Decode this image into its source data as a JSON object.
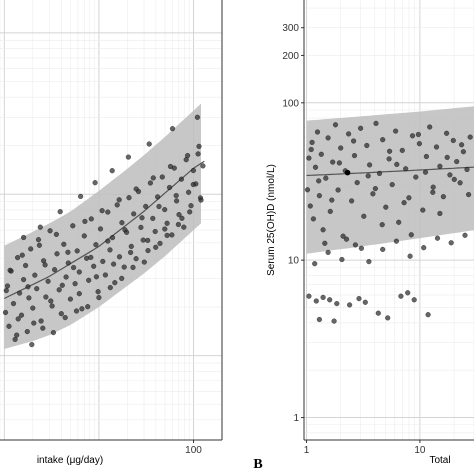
{
  "chart_data": [
    {
      "panel": "A",
      "type": "scatter",
      "xlabel": "intake (μg/day)",
      "ylabel": "",
      "x_scale": "log",
      "y_scale": "log",
      "xlim": [
        0.9,
        200
      ],
      "ylim": [
        3,
        1600
      ],
      "x_ticks": [
        {
          "value": 100,
          "label": "100"
        }
      ],
      "y_ticks": [],
      "grid": true,
      "colors": {
        "point": "#2b2b2b",
        "band": "#bdbdbd",
        "line": "#555555",
        "panel_border": "#333333"
      },
      "trend_line": {
        "x": [
          1,
          3,
          10,
          30,
          100,
          130
        ],
        "y": [
          22.6,
          31,
          47.5,
          78.5,
          145,
          160
        ]
      },
      "prediction_band": {
        "x": [
          1,
          2,
          3,
          5,
          10,
          20,
          30,
          50,
          100,
          120
        ],
        "lower": [
          11,
          12.3,
          13.4,
          15.5,
          20,
          27.1,
          32.3,
          41.4,
          60,
          66
        ],
        "upper": [
          48,
          58.5,
          66,
          78.1,
          105,
          144,
          175,
          227,
          330,
          365
        ]
      },
      "points": {
        "x": [
          1.03,
          1.08,
          1.12,
          1.18,
          1.25,
          1.3,
          1.38,
          1.45,
          1.52,
          1.6,
          1.68,
          1.75,
          1.82,
          1.9,
          2.0,
          2.1,
          2.2,
          2.3,
          2.45,
          2.6,
          2.75,
          2.9,
          3.05,
          3.2,
          3.4,
          3.6,
          3.8,
          4.0,
          4.25,
          4.5,
          4.75,
          5.0,
          5.3,
          5.6,
          5.9,
          6.2,
          6.6,
          7.0,
          7.4,
          7.8,
          8.3,
          8.8,
          9.3,
          9.8,
          10.4,
          11.0,
          11.7,
          12.4,
          13.1,
          13.9,
          14.7,
          15.6,
          16.5,
          17.5,
          18.5,
          19.6,
          20.8,
          22.0,
          23.3,
          24.7,
          26.2,
          27.8,
          29.4,
          31.2,
          33.0,
          35.0,
          37.1,
          39.3,
          41.7,
          44.2,
          46.8,
          49.6,
          52.6,
          55.7,
          59.1,
          62.6,
          66.3,
          70.3,
          74.5,
          79.0,
          83.7,
          88.7,
          94.0,
          99.6,
          105.6,
          111.9,
          118.6,
          125.7,
          1.15,
          1.35,
          1.55,
          1.78,
          2.05,
          2.35,
          2.7,
          3.1,
          3.55,
          4.1,
          4.7,
          5.4,
          6.2,
          7.1,
          8.2,
          9.4,
          10.8,
          12.4,
          14.3,
          16.4,
          18.8,
          21.6,
          24.8,
          28.5,
          32.8,
          37.6,
          43.2,
          49.7,
          57.1,
          65.6,
          75.3,
          86.5,
          99.4,
          114.2,
          1.05,
          1.4,
          1.95,
          2.55,
          3.3,
          4.4,
          5.8,
          7.6,
          10.0,
          13.2,
          17.4,
          22.9,
          30.2,
          39.8,
          52.5,
          69.2,
          91.2,
          120.0,
          1.6,
          2.4,
          3.9,
          6.4,
          9.1,
          13.8,
          20.5,
          34.0,
          60.0,
          110.0
        ],
        "y": [
          18.5,
          27.0,
          15.2,
          33.4,
          21.0,
          12.6,
          40.5,
          24.4,
          17.8,
          29.6,
          36.2,
          14.1,
          22.8,
          45.9,
          19.7,
          31.5,
          26.0,
          52.3,
          16.4,
          38.7,
          23.1,
          28.9,
          59.4,
          20.3,
          34.1,
          42.8,
          25.6,
          18.2,
          49.0,
          30.7,
          37.5,
          22.4,
          63.8,
          27.9,
          44.6,
          33.0,
          19.5,
          55.2,
          40.1,
          29.3,
          70.4,
          35.8,
          48.7,
          24.9,
          61.0,
          38.4,
          31.6,
          77.5,
          45.2,
          53.9,
          28.3,
          86.0,
          41.0,
          66.7,
          35.4,
          58.1,
          95.2,
          47.5,
          75.6,
          39.9,
          104.0,
          62.3,
          52.0,
          84.1,
          44.8,
          117.5,
          70.9,
          58.8,
          96.3,
          49.6,
          128.0,
          80.4,
          66.1,
          110.2,
          56.0,
          145.3,
          91.0,
          74.8,
          124.0,
          62.5,
          163.7,
          102.8,
          85.0,
          140.5,
          116.0,
          178.0,
          95.0,
          150.0,
          33.8,
          13.4,
          41.9,
          26.7,
          15.9,
          48.3,
          36.5,
          21.8,
          56.4,
          27.3,
          43.7,
          35.1,
          24.2,
          67.9,
          40.6,
          30.8,
          79.1,
          51.3,
          36.9,
          92.4,
          60.2,
          43.6,
          107.9,
          71.5,
          51.8,
          126.3,
          84.0,
          60.9,
          148.7,
          98.2,
          71.0,
          173.6,
          115.0,
          198.0,
          25.3,
          16.9,
          11.7,
          14.8,
          13.9,
          17.2,
          18.9,
          20.1,
          22.9,
          26.4,
          30.1,
          35.2,
          38.0,
          46.9,
          55.6,
          65.0,
          77.8,
          92.0,
          54.0,
          62.5,
          78.0,
          97.0,
          118.0,
          140.0,
          170.0,
          205.0,
          255.0,
          300.0
        ]
      }
    },
    {
      "panel": "B",
      "type": "scatter",
      "xlabel": "Total",
      "ylabel": "Serum 25(OH)D (nmol/L)",
      "x_scale": "log",
      "y_scale": "log",
      "xlim": [
        0.95,
        30
      ],
      "ylim": [
        0.72,
        450
      ],
      "x_ticks": [
        {
          "value": 1,
          "label": "1"
        },
        {
          "value": 10,
          "label": "10"
        }
      ],
      "y_ticks": [
        {
          "value": 1,
          "label": "1"
        },
        {
          "value": 10,
          "label": "10"
        },
        {
          "value": 100,
          "label": "100"
        },
        {
          "value": 200,
          "label": "200"
        },
        {
          "value": 300,
          "label": "300"
        }
      ],
      "grid": true,
      "colors": {
        "point": "#2b2b2b",
        "band": "#bdbdbd",
        "line": "#555555",
        "panel_border": "#333333"
      },
      "trend_line": {
        "x": [
          1,
          3,
          10,
          30
        ],
        "y": [
          34.5,
          35.8,
          37.4,
          39.0
        ]
      },
      "prediction_band": {
        "x": [
          1,
          3,
          10,
          30
        ],
        "lower": [
          11,
          12.2,
          13.8,
          15.5
        ],
        "upper": [
          77,
          82,
          88,
          95
        ]
      },
      "highlight_point": {
        "x": 2.3,
        "y": 36.0
      },
      "points": {
        "x": [
          1.02,
          1.05,
          1.08,
          1.12,
          1.15,
          1.2,
          1.25,
          1.3,
          1.35,
          1.4,
          1.48,
          1.55,
          1.62,
          1.7,
          1.8,
          1.9,
          2.0,
          2.1,
          2.2,
          2.35,
          2.5,
          2.65,
          2.8,
          3.0,
          3.2,
          3.4,
          3.6,
          3.85,
          4.1,
          4.4,
          4.7,
          5.0,
          5.35,
          5.7,
          6.1,
          6.5,
          7.0,
          7.5,
          8.0,
          8.6,
          9.2,
          9.9,
          10.6,
          11.4,
          12.2,
          13.1,
          14.0,
          15.0,
          16.1,
          17.2,
          18.4,
          19.7,
          21.1,
          22.6,
          24.2,
          26.0,
          27.8,
          1.1,
          1.28,
          1.45,
          1.67,
          1.95,
          2.25,
          2.6,
          3.05,
          3.5,
          4.05,
          4.65,
          5.4,
          6.25,
          7.25,
          8.4,
          9.7,
          11.2,
          13.0,
          15.0,
          17.4,
          20.1,
          23.3,
          26.9,
          1.18,
          1.55,
          2.05,
          2.7,
          3.55,
          4.7,
          6.2,
          8.2,
          10.8,
          14.3,
          18.9,
          25.0,
          1.05,
          1.22,
          1.4,
          1.6,
          1.85,
          2.9,
          3.3,
          5.2,
          6.8,
          8.9,
          11.8,
          1.3,
          1.75,
          2.4,
          4.3,
          7.8
        ],
        "y": [
          28.0,
          44.5,
          22.1,
          56.0,
          18.3,
          38.9,
          65.2,
          25.7,
          47.1,
          15.6,
          33.2,
          59.8,
          20.4,
          42.0,
          72.5,
          27.9,
          51.6,
          14.2,
          37.0,
          63.4,
          23.8,
          46.2,
          31.1,
          68.9,
          19.0,
          53.5,
          40.3,
          26.4,
          74.0,
          35.6,
          58.3,
          21.7,
          44.0,
          30.2,
          66.1,
          17.4,
          49.8,
          38.1,
          24.9,
          61.7,
          33.7,
          55.0,
          20.8,
          45.6,
          70.2,
          29.1,
          52.4,
          39.5,
          25.3,
          64.0,
          34.8,
          57.6,
          42.3,
          31.0,
          48.9,
          37.7,
          60.5,
          50.5,
          31.9,
          12.8,
          24.1,
          41.5,
          13.6,
          57.2,
          11.9,
          34.3,
          28.5,
          16.8,
          49.2,
          40.6,
          23.2,
          14.5,
          62.9,
          36.2,
          27.0,
          19.8,
          45.0,
          32.6,
          54.1,
          26.1,
          9.5,
          11.2,
          10.1,
          12.5,
          9.8,
          11.7,
          13.2,
          10.6,
          12.0,
          13.8,
          12.9,
          14.4,
          5.9,
          5.5,
          5.8,
          5.6,
          5.3,
          5.7,
          5.4,
          4.3,
          5.9,
          5.6,
          4.5,
          4.2,
          4.1,
          5.2,
          4.6,
          6.2
        ]
      }
    }
  ],
  "panel_labels": {
    "b": "B"
  }
}
